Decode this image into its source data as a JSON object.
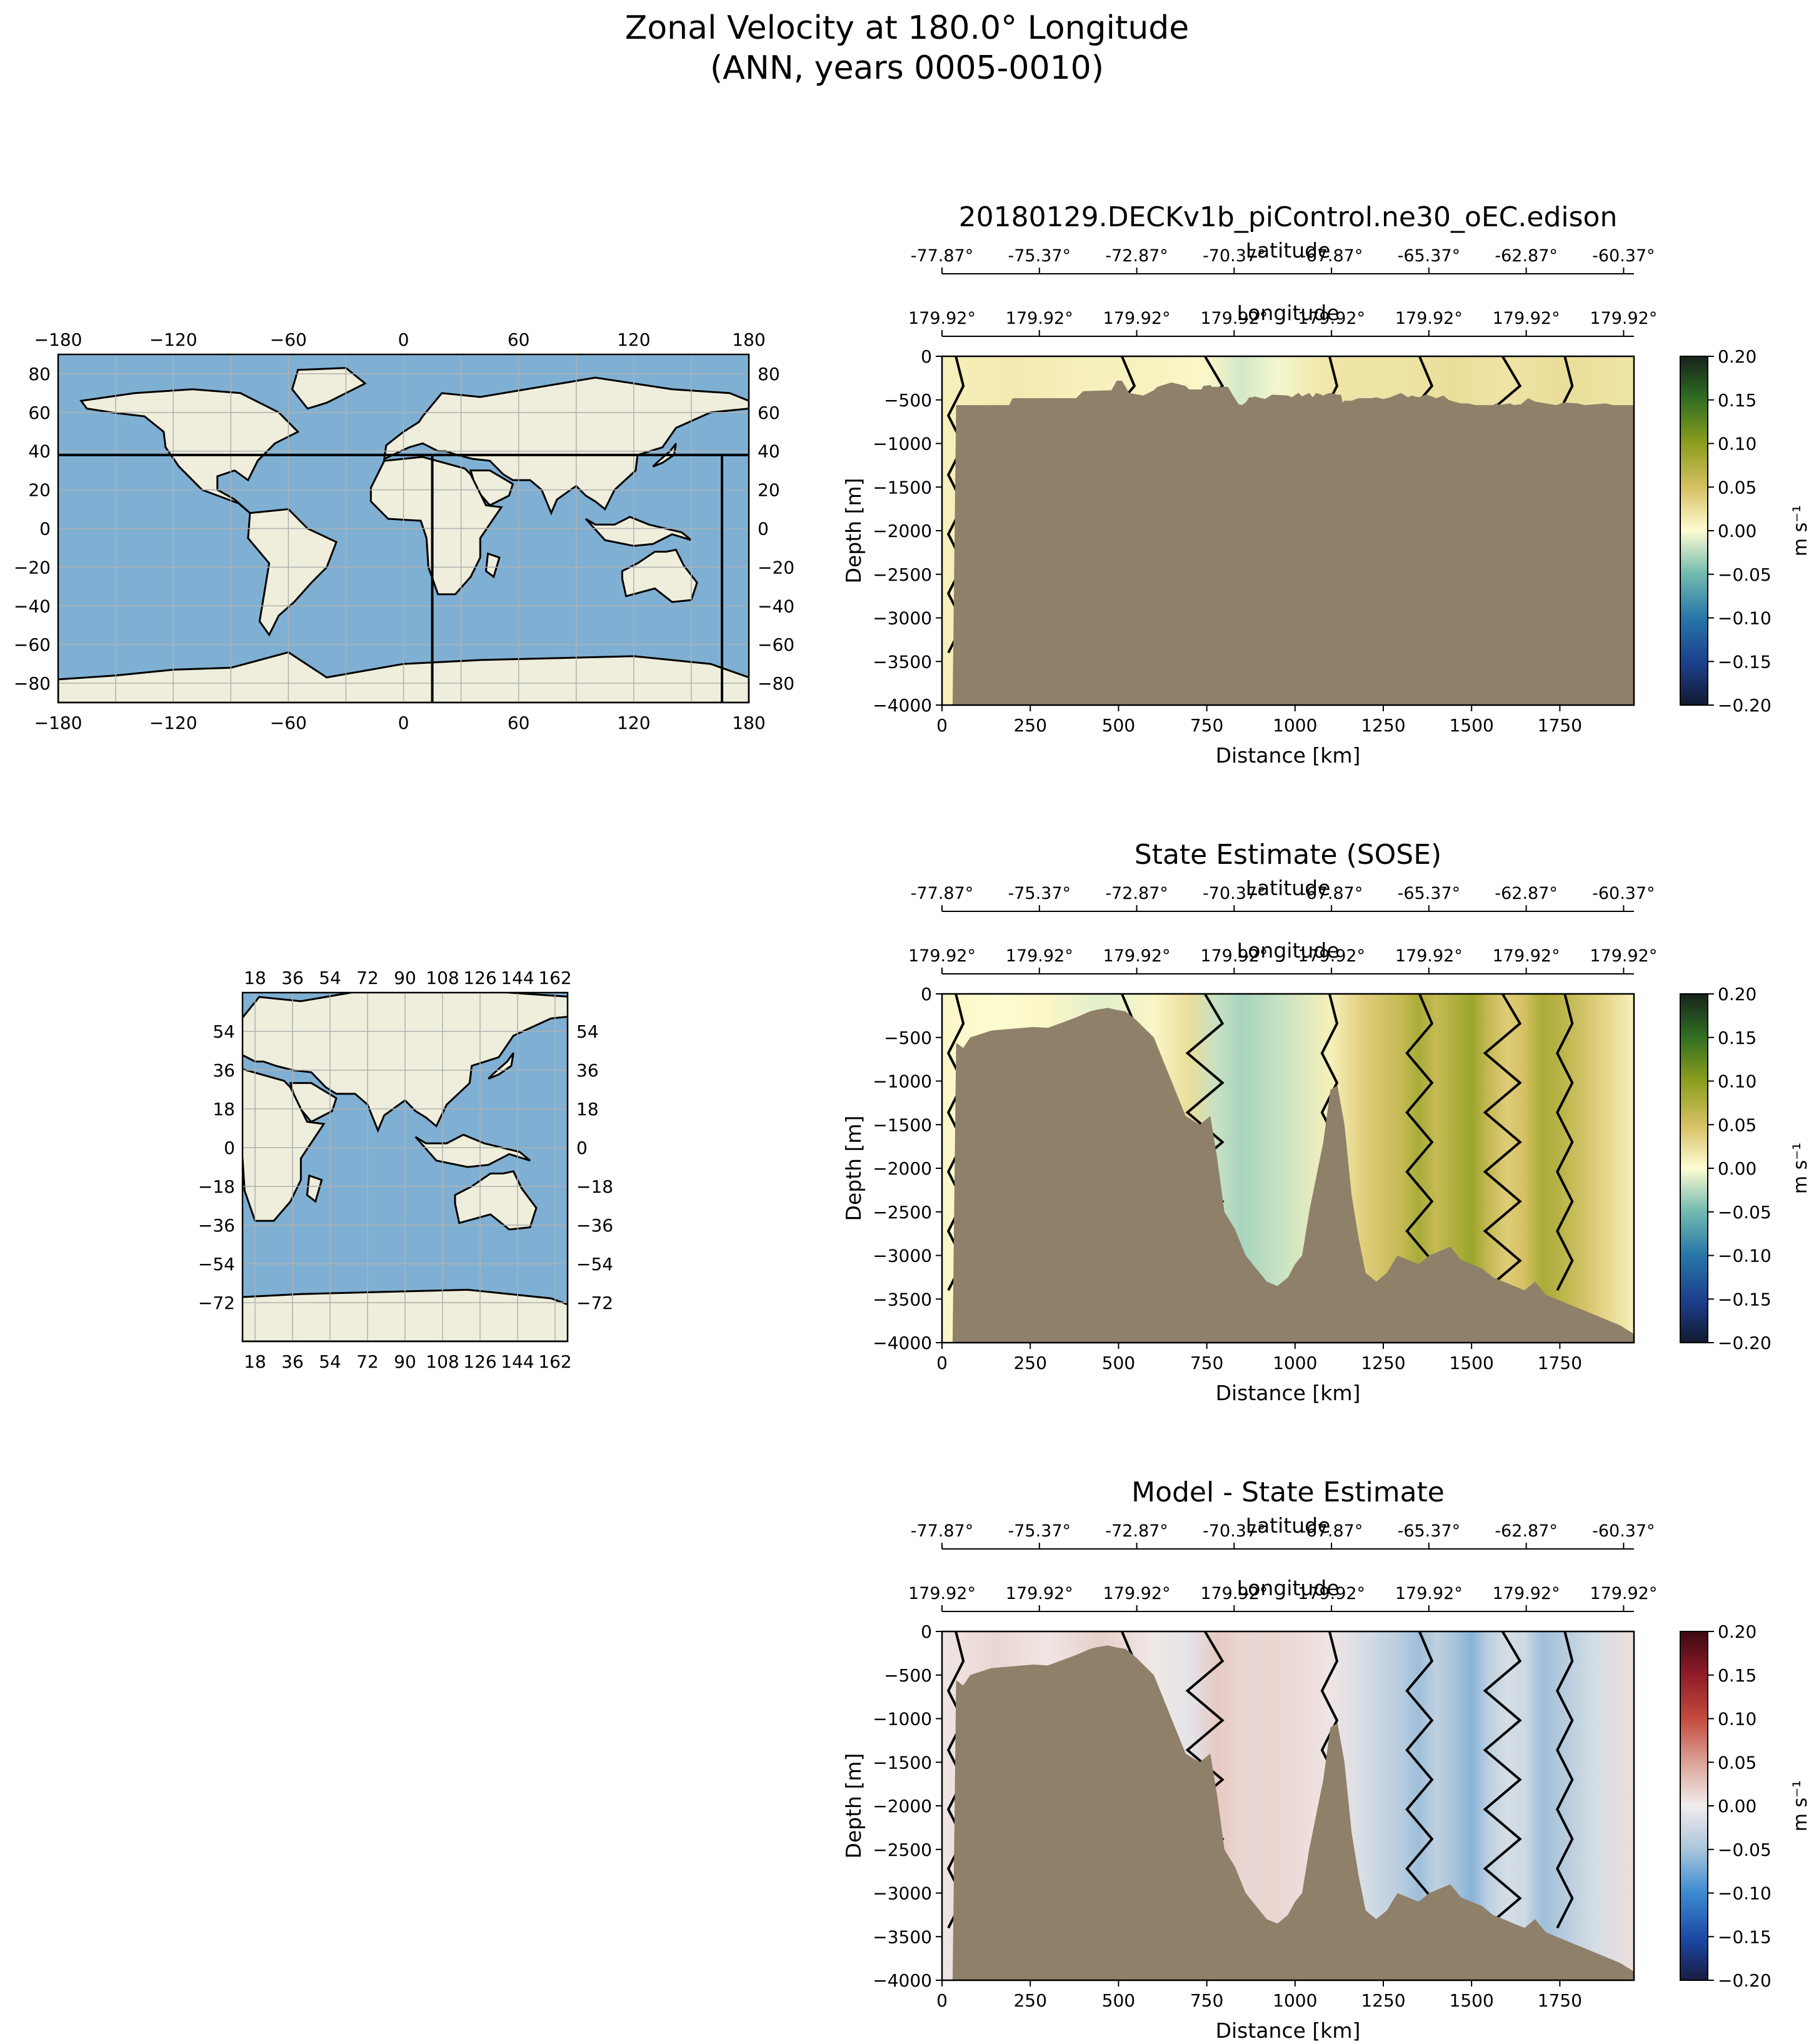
{
  "figure": {
    "title_line1": "Zonal Velocity at 180.0° Longitude",
    "title_line2": "(ANN, years 0005-0010)"
  },
  "colors": {
    "ocean": "#7fb0d4",
    "land": "#efeedc",
    "bathymetry": "#8f806a",
    "grid": "#b0b0b0"
  },
  "chart_data": [
    {
      "type": "heatmap",
      "title": "20180129.DECKv1b_piControl.ne30_oEC.edison",
      "xlabel": "Distance [km]",
      "ylabel": "Depth [m]",
      "secondary_axis_1_label": "Latitude",
      "secondary_axis_2_label": "Longitude",
      "latitude_ticks": [
        "-77.87°",
        "-75.37°",
        "-72.87°",
        "-70.37°",
        "-67.87°",
        "-65.37°",
        "-62.87°",
        "-60.37°"
      ],
      "longitude_ticks": [
        "179.92°",
        "179.92°",
        "179.92°",
        "179.92°",
        "179.92°",
        "179.92°",
        "179.92°",
        "179.92°"
      ],
      "x_ticks": [
        "0",
        "250",
        "500",
        "750",
        "1000",
        "1250",
        "1500",
        "1750"
      ],
      "y_ticks": [
        "0",
        "−500",
        "−1000",
        "−1500",
        "−2000",
        "−2500",
        "−3000",
        "−3500",
        "−4000"
      ],
      "xlim": [
        0,
        1960
      ],
      "ylim": [
        -4000,
        0
      ],
      "colorbar_label": "m s⁻¹",
      "colorbar_ticks": [
        "0.20",
        "0.15",
        "0.10",
        "0.05",
        "0.00",
        "−0.05",
        "−0.10",
        "−0.15",
        "−0.20"
      ],
      "colormap": "delta",
      "velocity_profile": {
        "distance_km": [
          0,
          200,
          400,
          600,
          750,
          850,
          950,
          1050,
          1150,
          1300,
          1450,
          1600,
          1750,
          1960
        ],
        "u_ms": [
          0.01,
          0.015,
          0.01,
          0.008,
          0.004,
          -0.015,
          -0.004,
          0.015,
          0.02,
          0.02,
          0.025,
          0.02,
          0.025,
          0.02
        ]
      },
      "bathymetry": {
        "distance_km": [
          0,
          30,
          40,
          190,
          200,
          380,
          400,
          480,
          495,
          510,
          530,
          570,
          580,
          600,
          610,
          650,
          660,
          690,
          700,
          735,
          740,
          760,
          765,
          810,
          820,
          840,
          850,
          860,
          870,
          880,
          885,
          915,
          935,
          980,
          990,
          1010,
          1020,
          1040,
          1050,
          1060,
          1080,
          1090,
          1100,
          1120,
          1130,
          1135,
          1140,
          1160,
          1180,
          1215,
          1230,
          1250,
          1270,
          1300,
          1320,
          1330,
          1350,
          1370,
          1380,
          1400,
          1420,
          1435,
          1450,
          1470,
          1490,
          1510,
          1540,
          1560,
          1570,
          1580,
          1590,
          1610,
          1620,
          1640,
          1660,
          1680,
          1710,
          1740,
          1760,
          1800,
          1820,
          1880,
          1890,
          1900,
          1960
        ],
        "depth_m": [
          -4000,
          -4000,
          -560,
          -560,
          -480,
          -480,
          -400,
          -390,
          -280,
          -280,
          -420,
          -450,
          -430,
          -390,
          -350,
          -300,
          -310,
          -340,
          -380,
          -380,
          -340,
          -330,
          -350,
          -350,
          -420,
          -550,
          -560,
          -530,
          -470,
          -470,
          -460,
          -490,
          -440,
          -450,
          -470,
          -420,
          -460,
          -420,
          -470,
          -420,
          -450,
          -430,
          -420,
          -440,
          -440,
          -530,
          -510,
          -510,
          -480,
          -480,
          -470,
          -490,
          -470,
          -420,
          -470,
          -450,
          -470,
          -440,
          -450,
          -480,
          -450,
          -500,
          -520,
          -540,
          -540,
          -560,
          -560,
          -560,
          -540,
          -560,
          -550,
          -540,
          -560,
          -550,
          -480,
          -520,
          -540,
          -560,
          -530,
          -540,
          -560,
          -540,
          -550,
          -560,
          -560
        ]
      }
    },
    {
      "type": "heatmap",
      "title": "State Estimate (SOSE)",
      "xlabel": "Distance [km]",
      "ylabel": "Depth [m]",
      "secondary_axis_1_label": "Latitude",
      "secondary_axis_2_label": "Longitude",
      "latitude_ticks": [
        "-77.87°",
        "-75.37°",
        "-72.87°",
        "-70.37°",
        "-67.87°",
        "-65.37°",
        "-62.87°",
        "-60.37°"
      ],
      "longitude_ticks": [
        "179.92°",
        "179.92°",
        "179.92°",
        "179.92°",
        "179.92°",
        "179.92°",
        "179.92°",
        "179.92°"
      ],
      "x_ticks": [
        "0",
        "250",
        "500",
        "750",
        "1000",
        "1250",
        "1500",
        "1750"
      ],
      "y_ticks": [
        "0",
        "−500",
        "−1000",
        "−1500",
        "−2000",
        "−2500",
        "−3000",
        "−3500",
        "−4000"
      ],
      "xlim": [
        0,
        1960
      ],
      "ylim": [
        -4000,
        0
      ],
      "colorbar_label": "m s⁻¹",
      "colorbar_ticks": [
        "0.20",
        "0.15",
        "0.10",
        "0.05",
        "0.00",
        "−0.05",
        "−0.10",
        "−0.15",
        "−0.20"
      ],
      "colormap": "delta",
      "velocity_profile": {
        "distance_km": [
          0,
          150,
          300,
          450,
          600,
          700,
          780,
          850,
          950,
          1100,
          1200,
          1300,
          1350,
          1400,
          1450,
          1500,
          1550,
          1600,
          1650,
          1700,
          1750,
          1850,
          1960
        ],
        "u_ms": [
          0.005,
          0.0,
          0.005,
          -0.01,
          0.005,
          0.025,
          -0.02,
          -0.03,
          -0.02,
          0.01,
          0.04,
          0.06,
          0.08,
          0.06,
          0.075,
          0.09,
          0.06,
          0.04,
          0.05,
          0.08,
          0.07,
          0.04,
          0.01
        ]
      },
      "bathymetry": {
        "distance_km": [
          0,
          30,
          40,
          60,
          80,
          140,
          200,
          260,
          300,
          360,
          380,
          420,
          440,
          470,
          490,
          520,
          550,
          580,
          600,
          620,
          640,
          660,
          690,
          730,
          760,
          780,
          800,
          830,
          860,
          880,
          900,
          920,
          950,
          980,
          1000,
          1020,
          1040,
          1060,
          1080,
          1100,
          1120,
          1140,
          1160,
          1180,
          1200,
          1230,
          1260,
          1290,
          1320,
          1350,
          1380,
          1410,
          1440,
          1470,
          1500,
          1530,
          1560,
          1590,
          1620,
          1650,
          1680,
          1710,
          1740,
          1770,
          1800,
          1830,
          1860,
          1890,
          1920,
          1940,
          1960
        ],
        "depth_m": [
          -4000,
          -4000,
          -560,
          -620,
          -500,
          -420,
          -400,
          -380,
          -390,
          -300,
          -270,
          -200,
          -180,
          -160,
          -180,
          -200,
          -300,
          -420,
          -500,
          -700,
          -900,
          -1100,
          -1400,
          -1500,
          -1400,
          -1900,
          -2500,
          -2700,
          -3000,
          -3100,
          -3200,
          -3300,
          -3350,
          -3250,
          -3100,
          -3000,
          -2500,
          -2100,
          -1700,
          -1100,
          -1050,
          -1500,
          -2300,
          -2800,
          -3200,
          -3300,
          -3200,
          -3000,
          -3050,
          -3100,
          -3000,
          -2950,
          -2900,
          -3050,
          -3100,
          -3150,
          -3250,
          -3300,
          -3350,
          -3400,
          -3300,
          -3450,
          -3500,
          -3550,
          -3600,
          -3650,
          -3700,
          -3750,
          -3800,
          -3850,
          -3900
        ]
      }
    },
    {
      "type": "heatmap",
      "title": "Model - State Estimate",
      "xlabel": "Distance [km]",
      "ylabel": "Depth [m]",
      "secondary_axis_1_label": "Latitude",
      "secondary_axis_2_label": "Longitude",
      "latitude_ticks": [
        "-77.87°",
        "-75.37°",
        "-72.87°",
        "-70.37°",
        "-67.87°",
        "-65.37°",
        "-62.87°",
        "-60.37°"
      ],
      "longitude_ticks": [
        "179.92°",
        "179.92°",
        "179.92°",
        "179.92°",
        "179.92°",
        "179.92°",
        "179.92°",
        "179.92°"
      ],
      "x_ticks": [
        "0",
        "250",
        "500",
        "750",
        "1000",
        "1250",
        "1500",
        "1750"
      ],
      "y_ticks": [
        "0",
        "−500",
        "−1000",
        "−1500",
        "−2000",
        "−2500",
        "−3000",
        "−3500",
        "−4000"
      ],
      "xlim": [
        0,
        1960
      ],
      "ylim": [
        -4000,
        0
      ],
      "colorbar_label": "m s⁻¹",
      "colorbar_ticks": [
        "0.20",
        "0.15",
        "0.10",
        "0.05",
        "0.00",
        "−0.05",
        "−0.10",
        "−0.15",
        "−0.20"
      ],
      "colormap": "balance",
      "velocity_profile": {
        "distance_km": [
          0,
          150,
          300,
          450,
          600,
          700,
          780,
          850,
          950,
          1100,
          1200,
          1300,
          1350,
          1400,
          1450,
          1500,
          1550,
          1600,
          1650,
          1700,
          1750,
          1850,
          1960
        ],
        "u_ms": [
          0.005,
          0.015,
          0.005,
          0.02,
          0.003,
          -0.01,
          0.024,
          0.015,
          0.016,
          0.005,
          -0.02,
          -0.04,
          -0.055,
          -0.035,
          -0.05,
          -0.065,
          -0.035,
          -0.02,
          -0.025,
          -0.055,
          -0.045,
          -0.02,
          0.01
        ]
      },
      "bathymetry": {
        "distance_km": [
          0,
          30,
          40,
          60,
          80,
          140,
          200,
          260,
          300,
          360,
          380,
          420,
          440,
          470,
          490,
          520,
          550,
          580,
          600,
          620,
          640,
          660,
          690,
          730,
          760,
          780,
          800,
          830,
          860,
          880,
          900,
          920,
          950,
          980,
          1000,
          1020,
          1040,
          1060,
          1080,
          1100,
          1120,
          1140,
          1160,
          1180,
          1200,
          1230,
          1260,
          1290,
          1320,
          1350,
          1380,
          1410,
          1440,
          1470,
          1500,
          1530,
          1560,
          1590,
          1620,
          1650,
          1680,
          1710,
          1740,
          1770,
          1800,
          1830,
          1860,
          1890,
          1920,
          1940,
          1960
        ],
        "depth_m": [
          -4000,
          -4000,
          -560,
          -620,
          -500,
          -420,
          -400,
          -380,
          -390,
          -300,
          -270,
          -200,
          -180,
          -160,
          -180,
          -200,
          -300,
          -420,
          -500,
          -700,
          -900,
          -1100,
          -1400,
          -1500,
          -1400,
          -1900,
          -2500,
          -2700,
          -3000,
          -3100,
          -3200,
          -3300,
          -3350,
          -3250,
          -3100,
          -3000,
          -2500,
          -2100,
          -1700,
          -1100,
          -1050,
          -1500,
          -2300,
          -2800,
          -3200,
          -3300,
          -3200,
          -3000,
          -3050,
          -3100,
          -3000,
          -2950,
          -2900,
          -3050,
          -3100,
          -3150,
          -3250,
          -3300,
          -3350,
          -3400,
          -3300,
          -3450,
          -3500,
          -3550,
          -3600,
          -3650,
          -3700,
          -3750,
          -3800,
          -3850,
          -3900
        ]
      }
    }
  ],
  "map1": {
    "type": "map",
    "x_ticks": [
      "−180",
      "−120",
      "−60",
      "0",
      "60",
      "120",
      "180"
    ],
    "y_ticks_left": [
      "80",
      "60",
      "40",
      "20",
      "0",
      "−20",
      "−40",
      "−60",
      "−80"
    ],
    "y_ticks_right": [
      "80",
      "60",
      "40",
      "20",
      "0",
      "−20",
      "−40",
      "−60",
      "−80"
    ],
    "lon_range": [
      -180,
      180
    ],
    "lat_range": [
      -90,
      90
    ]
  },
  "map2": {
    "type": "map",
    "x_ticks": [
      "18",
      "36",
      "54",
      "72",
      "90",
      "108",
      "126",
      "144",
      "162"
    ],
    "y_ticks": [
      "54",
      "36",
      "18",
      "0",
      "−18",
      "−36",
      "−54",
      "−72"
    ],
    "lon_range": [
      12,
      168
    ],
    "lat_range": [
      -90,
      72
    ]
  }
}
